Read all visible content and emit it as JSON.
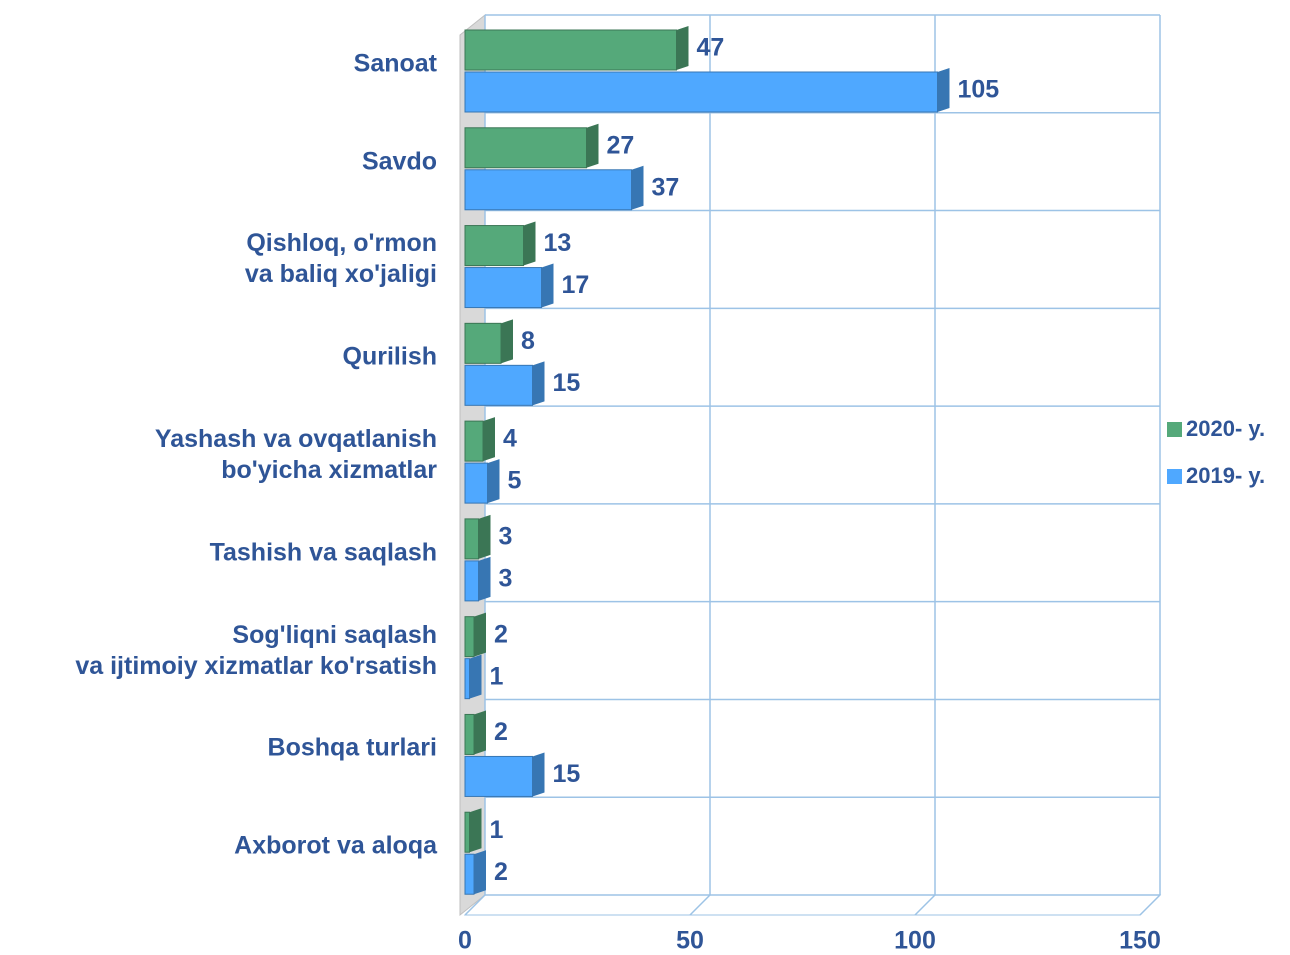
{
  "chart_data": {
    "type": "bar",
    "orientation": "horizontal",
    "categories": [
      "Sanoat",
      "Savdo",
      "Qishloq, o'rmon\nva baliq xo'jaligi",
      "Qurilish",
      "Yashash va ovqatlanish\nbo'yicha xizmatlar",
      "Tashish va saqlash",
      "Sog'liqni saqlash\nva ijtimoiy xizmatlar ko'rsatish",
      "Boshqa turlari",
      "Axborot va aloqa"
    ],
    "series": [
      {
        "name": "2020- y.",
        "color": "#55a97a",
        "values": [
          47,
          27,
          13,
          8,
          4,
          3,
          2,
          2,
          1
        ]
      },
      {
        "name": "2019- y.",
        "color": "#4fa8ff",
        "values": [
          105,
          37,
          17,
          15,
          5,
          3,
          1,
          15,
          2
        ]
      }
    ],
    "xlim": [
      0,
      150
    ],
    "xticks": [
      0,
      50,
      100,
      150
    ],
    "grid": true,
    "legend": "right"
  }
}
